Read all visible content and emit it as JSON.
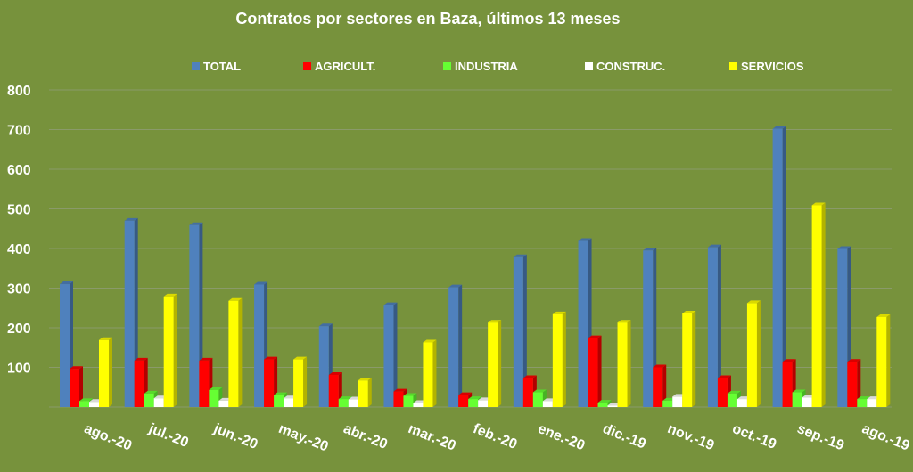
{
  "chart_data": {
    "type": "bar",
    "title": "Contratos por sectores en Baza, últimos 13 meses",
    "xlabel": "",
    "ylabel": "",
    "ylim": [
      0,
      800
    ],
    "yticks": [
      "100",
      "200",
      "300",
      "400",
      "500",
      "600",
      "700",
      "800"
    ],
    "grid": true,
    "legend_position": "top",
    "categories": [
      "ago.-20",
      "jul.-20",
      "jun.-20",
      "may.-20",
      "abr.-20",
      "mar.-20",
      "feb.-20",
      "ene.-20",
      "dic.-19",
      "nov.-19",
      "oct.-19",
      "sep.-19",
      "ago.-19"
    ],
    "series": [
      {
        "name": "TOTAL",
        "color": "#4f81bd",
        "values": [
          310,
          470,
          459,
          309,
          204,
          257,
          302,
          378,
          419,
          395,
          403,
          702,
          399
        ]
      },
      {
        "name": "AGRICULT.",
        "color": "#ff0000",
        "values": [
          96,
          117,
          117,
          120,
          81,
          39,
          30,
          73,
          174,
          100,
          73,
          114,
          114
        ]
      },
      {
        "name": "INDUSTRIA",
        "color": "#66ff33",
        "values": [
          15,
          34,
          43,
          30,
          20,
          28,
          20,
          37,
          11,
          16,
          34,
          37,
          20
        ]
      },
      {
        "name": "CONSTRUC.",
        "color": "#ffffff",
        "values": [
          13,
          22,
          16,
          22,
          19,
          10,
          17,
          15,
          4,
          26,
          20,
          24,
          20
        ]
      },
      {
        "name": "SERVICIOS",
        "color": "#ffff00",
        "values": [
          169,
          279,
          268,
          120,
          67,
          163,
          213,
          234,
          213,
          236,
          262,
          509,
          227
        ]
      }
    ]
  }
}
